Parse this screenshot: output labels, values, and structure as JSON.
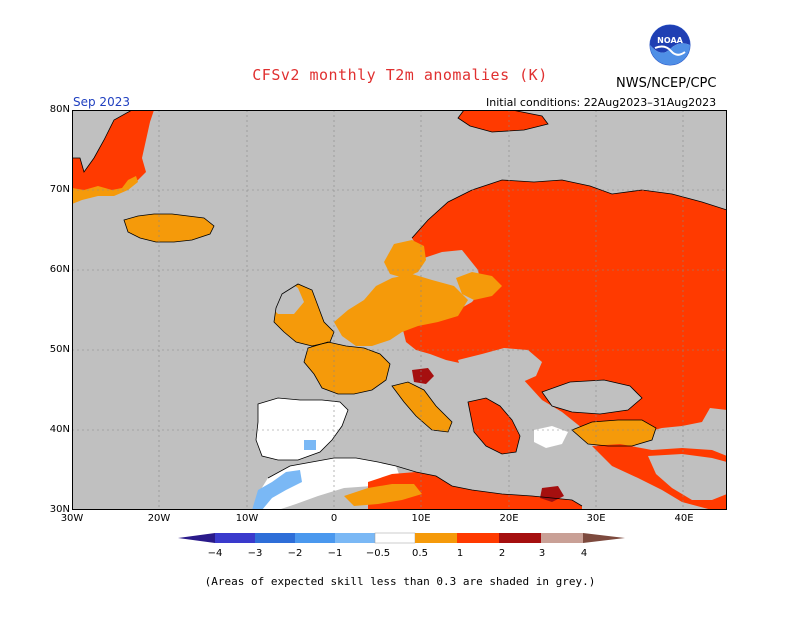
{
  "header": {
    "title": "CFSv2 monthly T2m anomalies (K)",
    "agency": "NWS/NCEP/CPC",
    "logo_text": "NOAA",
    "month": "Sep 2023",
    "initial_conditions": "Initial conditions: 22Aug2023–31Aug2023"
  },
  "axes": {
    "lat_labels": [
      "80N",
      "70N",
      "60N",
      "50N",
      "40N",
      "30N"
    ],
    "lon_labels": [
      "30W",
      "20W",
      "10W",
      "0",
      "10E",
      "20E",
      "30E",
      "40E"
    ]
  },
  "colorbar": {
    "labels": [
      "−4",
      "−3",
      "−2",
      "−1",
      "−0.5",
      "0.5",
      "1",
      "2",
      "3",
      "4"
    ],
    "colors": [
      "#2a1a8a",
      "#3a3acc",
      "#2e6ed8",
      "#4a98ee",
      "#7ab8f5",
      "#ffffff",
      "#f59a0a",
      "#ff3a00",
      "#a50f0f",
      "#c9a096",
      "#7d4a3e"
    ]
  },
  "footnote": "(Areas of expected skill less than 0.3 are shaded in grey.)",
  "colors": {
    "ocean": "#c0c0c0",
    "no_skill": "#c0c0c0",
    "anom_0_5_1": "#f59a0a",
    "anom_1_2": "#ff3a00",
    "anom_2_3": "#a50f0f",
    "anom_neg_1_0_5": "#7ab8f5",
    "neutral": "#ffffff"
  }
}
